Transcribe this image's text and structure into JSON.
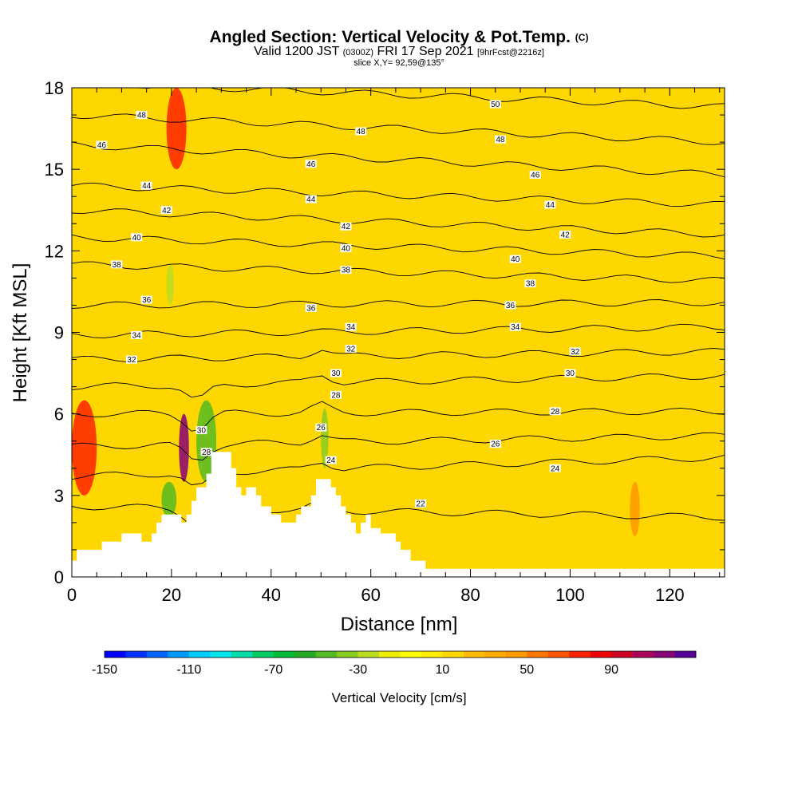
{
  "title": {
    "main": "Angled Section: Vertical Velocity & Pot.Temp.",
    "main_unit": "(C)",
    "valid_prefix": "Valid 1200 JST",
    "valid_utc": "(0300Z)",
    "valid_date": "FRI 17 Sep 2021",
    "forecast": "[9hrFcst@2216z]",
    "slice": "slice X,Y= 92,59@135°"
  },
  "chart_data": {
    "type": "heatmap",
    "xlabel": "Distance [nm]",
    "ylabel": "Height [Kft MSL]",
    "xlim": [
      0,
      131
    ],
    "ylim": [
      0,
      18
    ],
    "xticks": [
      0,
      20,
      40,
      60,
      80,
      100,
      120
    ],
    "yticks": [
      0,
      3,
      6,
      9,
      12,
      15,
      18
    ],
    "xtick_labels": [
      "0",
      "20",
      "40",
      "60",
      "80",
      "100",
      "120"
    ],
    "ytick_labels": [
      "0",
      "3",
      "6",
      "9",
      "12",
      "15",
      "18"
    ],
    "background_velocity_cm_s": 10,
    "velocity_features": [
      {
        "x": [
          19,
          23
        ],
        "y": [
          15,
          18
        ],
        "value": 70
      },
      {
        "x": [
          0,
          5
        ],
        "y": [
          3,
          6.5
        ],
        "value": 70
      },
      {
        "x": [
          21.5,
          23.5
        ],
        "y": [
          3.5,
          6
        ],
        "value": 110
      },
      {
        "x": [
          18,
          21
        ],
        "y": [
          2.2,
          3.5
        ],
        "value": -50
      },
      {
        "x": [
          25,
          29
        ],
        "y": [
          3.5,
          6.5
        ],
        "value": -50
      },
      {
        "x": [
          50,
          51.5
        ],
        "y": [
          4,
          6.2
        ],
        "value": -40
      },
      {
        "x": [
          19,
          20.5
        ],
        "y": [
          10,
          11.5
        ],
        "value": -30
      },
      {
        "x": [
          112,
          114
        ],
        "y": [
          1.5,
          3.5
        ],
        "value": 40
      }
    ],
    "terrain": [
      {
        "x": 0,
        "h": 0.6
      },
      {
        "x": 1,
        "h": 1.0
      },
      {
        "x": 5,
        "h": 1.0
      },
      {
        "x": 6,
        "h": 1.3
      },
      {
        "x": 9,
        "h": 1.3
      },
      {
        "x": 10,
        "h": 1.6
      },
      {
        "x": 13,
        "h": 1.6
      },
      {
        "x": 14,
        "h": 1.3
      },
      {
        "x": 16,
        "h": 1.6
      },
      {
        "x": 17,
        "h": 2.0
      },
      {
        "x": 18,
        "h": 2.3
      },
      {
        "x": 21,
        "h": 2.3
      },
      {
        "x": 22,
        "h": 2.0
      },
      {
        "x": 23,
        "h": 2.3
      },
      {
        "x": 24,
        "h": 2.8
      },
      {
        "x": 25,
        "h": 3.3
      },
      {
        "x": 27,
        "h": 3.8
      },
      {
        "x": 28,
        "h": 4.6
      },
      {
        "x": 31,
        "h": 4.6
      },
      {
        "x": 32,
        "h": 4.0
      },
      {
        "x": 33,
        "h": 3.3
      },
      {
        "x": 34,
        "h": 3.0
      },
      {
        "x": 35,
        "h": 3.3
      },
      {
        "x": 37,
        "h": 3.0
      },
      {
        "x": 38,
        "h": 2.6
      },
      {
        "x": 40,
        "h": 2.3
      },
      {
        "x": 42,
        "h": 2.0
      },
      {
        "x": 44,
        "h": 2.0
      },
      {
        "x": 45,
        "h": 2.3
      },
      {
        "x": 46,
        "h": 2.6
      },
      {
        "x": 48,
        "h": 3.0
      },
      {
        "x": 49,
        "h": 3.6
      },
      {
        "x": 51,
        "h": 3.6
      },
      {
        "x": 52,
        "h": 3.3
      },
      {
        "x": 53,
        "h": 3.0
      },
      {
        "x": 54,
        "h": 2.6
      },
      {
        "x": 55,
        "h": 2.3
      },
      {
        "x": 56,
        "h": 2.0
      },
      {
        "x": 57,
        "h": 1.6
      },
      {
        "x": 58,
        "h": 2.0
      },
      {
        "x": 59,
        "h": 2.3
      },
      {
        "x": 60,
        "h": 1.8
      },
      {
        "x": 62,
        "h": 1.6
      },
      {
        "x": 65,
        "h": 1.3
      },
      {
        "x": 66,
        "h": 1.0
      },
      {
        "x": 68,
        "h": 0.6
      },
      {
        "x": 71,
        "h": 0.3
      },
      {
        "x": 131,
        "h": 0.3
      }
    ],
    "isentropes": [
      {
        "level": 22,
        "y_start": 2.6,
        "y_end": 2.2,
        "label_x": 70,
        "label_y": 2.7
      },
      {
        "level": 24,
        "y_start": 3.7,
        "y_end": 4.4,
        "label_x": 97,
        "label_y": 4.0
      },
      {
        "level": 26,
        "y_start": 4.8,
        "y_end": 5.2,
        "label_x": 85,
        "label_y": 4.9
      },
      {
        "level": 28,
        "y_start": 6.0,
        "y_end": 6.1,
        "label_x": 97,
        "label_y": 6.1
      },
      {
        "level": 30,
        "y_start": 7.0,
        "y_end": 7.4,
        "label_x": 100,
        "label_y": 7.5
      },
      {
        "level": 32,
        "y_start": 8.0,
        "y_end": 8.3,
        "label_x": 101,
        "label_y": 8.3
      },
      {
        "level": 34,
        "y_start": 8.9,
        "y_end": 9.2,
        "label_x": 89,
        "label_y": 9.2
      },
      {
        "level": 36,
        "y_start": 10.0,
        "y_end": 10.1,
        "label_x": 88,
        "label_y": 10.0
      },
      {
        "level": 38,
        "y_start": 11.5,
        "y_end": 10.9,
        "label_x": 92,
        "label_y": 10.8
      },
      {
        "level": 40,
        "y_start": 12.5,
        "y_end": 11.8,
        "label_x": 89,
        "label_y": 11.7
      },
      {
        "level": 42,
        "y_start": 13.5,
        "y_end": 12.6,
        "label_x": 99,
        "label_y": 12.6
      },
      {
        "level": 44,
        "y_start": 14.4,
        "y_end": 13.7,
        "label_x": 96,
        "label_y": 13.7
      },
      {
        "level": 46,
        "y_start": 15.9,
        "y_end": 14.8,
        "label_x": 93,
        "label_y": 14.8
      },
      {
        "level": 48,
        "y_start": 17.0,
        "y_end": 16.0,
        "label_x": 86,
        "label_y": 16.1
      },
      {
        "level": 50,
        "y_start": 18.2,
        "y_end": 17.3,
        "label_x": 85,
        "label_y": 17.4
      }
    ],
    "extra_contour_labels": [
      {
        "text": "48",
        "x": 14,
        "y": 17.0
      },
      {
        "text": "46",
        "x": 6,
        "y": 15.9
      },
      {
        "text": "48",
        "x": 58,
        "y": 16.4
      },
      {
        "text": "46",
        "x": 48,
        "y": 15.2
      },
      {
        "text": "44",
        "x": 15,
        "y": 14.4
      },
      {
        "text": "44",
        "x": 48,
        "y": 13.9
      },
      {
        "text": "42",
        "x": 19,
        "y": 13.5
      },
      {
        "text": "42",
        "x": 55,
        "y": 12.9
      },
      {
        "text": "40",
        "x": 13,
        "y": 12.5
      },
      {
        "text": "40",
        "x": 55,
        "y": 12.1
      },
      {
        "text": "38",
        "x": 9,
        "y": 11.5
      },
      {
        "text": "38",
        "x": 55,
        "y": 11.3
      },
      {
        "text": "36",
        "x": 15,
        "y": 10.2
      },
      {
        "text": "36",
        "x": 48,
        "y": 9.9
      },
      {
        "text": "34",
        "x": 13,
        "y": 8.9
      },
      {
        "text": "34",
        "x": 56,
        "y": 9.2
      },
      {
        "text": "32",
        "x": 12,
        "y": 8.0
      },
      {
        "text": "32",
        "x": 56,
        "y": 8.4
      },
      {
        "text": "30",
        "x": 53,
        "y": 7.5
      },
      {
        "text": "28",
        "x": 53,
        "y": 6.7
      },
      {
        "text": "26",
        "x": 50,
        "y": 5.5
      },
      {
        "text": "24",
        "x": 52,
        "y": 4.3
      },
      {
        "text": "30",
        "x": 26,
        "y": 5.4
      },
      {
        "text": "28",
        "x": 27,
        "y": 4.6
      }
    ]
  },
  "colorbar": {
    "title": "Vertical Velocity [cm/s]",
    "tick_labels": [
      "-150",
      "-110",
      "-70",
      "-30",
      "10",
      "50",
      "90"
    ],
    "colors": [
      "#0000ff",
      "#0033ff",
      "#0066ff",
      "#0099ff",
      "#00ccff",
      "#00e5ee",
      "#00ddaa",
      "#00cc66",
      "#00bb33",
      "#22aa22",
      "#55bb22",
      "#88cc22",
      "#bbdd22",
      "#eeee00",
      "#ffff00",
      "#ffee00",
      "#ffd700",
      "#ffbb00",
      "#ffaa00",
      "#ff9900",
      "#ff7700",
      "#ff5500",
      "#ff2200",
      "#ee0000",
      "#cc0022",
      "#aa0055",
      "#880077",
      "#550099"
    ]
  }
}
